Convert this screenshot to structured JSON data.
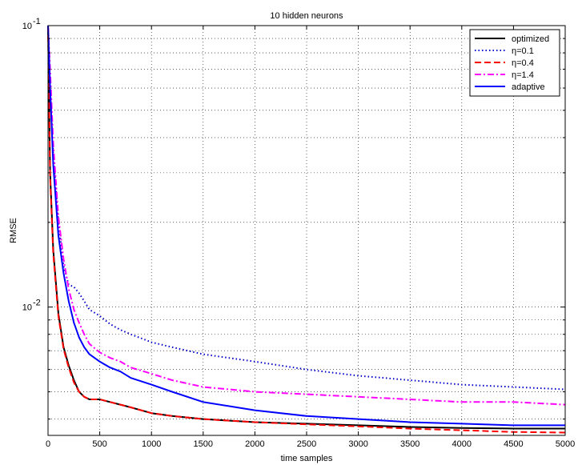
{
  "chart_data": {
    "type": "line",
    "title": "10 hidden neurons",
    "xlabel": "time samples",
    "ylabel": "RMSE",
    "xlim": [
      0,
      5000
    ],
    "ylim": [
      0.0035,
      0.1
    ],
    "yscale": "log",
    "grid": true,
    "legend_position": "top-right",
    "x_ticks": [
      0,
      500,
      1000,
      1500,
      2000,
      2500,
      3000,
      3500,
      4000,
      4500,
      5000
    ],
    "x_tick_labels": [
      "0",
      "500",
      "1000",
      "1500",
      "2000",
      "2500",
      "3000",
      "3500",
      "4000",
      "4500",
      "5000"
    ],
    "y_major_ticks": [
      0.01,
      0.1
    ],
    "y_major_tick_labels": [
      {
        "base": "10",
        "exp": "-2"
      },
      {
        "base": "10",
        "exp": "-1"
      }
    ],
    "y_minor_ticks": [
      0.004,
      0.005,
      0.006,
      0.007,
      0.008,
      0.009,
      0.02,
      0.03,
      0.04,
      0.05,
      0.06,
      0.07,
      0.08,
      0.09
    ],
    "series": [
      {
        "name": "optimized",
        "color": "#000000",
        "dash": "solid",
        "x": [
          0,
          20,
          50,
          100,
          150,
          200,
          250,
          300,
          350,
          400,
          450,
          500,
          600,
          700,
          800,
          1000,
          1200,
          1500,
          2000,
          2500,
          3000,
          3500,
          4000,
          4500,
          5000
        ],
        "y": [
          0.1,
          0.03,
          0.016,
          0.0095,
          0.0072,
          0.0062,
          0.0055,
          0.005,
          0.0048,
          0.0047,
          0.0047,
          0.0047,
          0.0046,
          0.0045,
          0.0044,
          0.0042,
          0.0041,
          0.004,
          0.0039,
          0.00385,
          0.0038,
          0.00375,
          0.00372,
          0.0037,
          0.0037
        ]
      },
      {
        "name": "η=0.1",
        "color": "#0000cc",
        "dash": "dotted",
        "x": [
          0,
          20,
          50,
          100,
          150,
          200,
          250,
          300,
          350,
          400,
          500,
          600,
          700,
          800,
          1000,
          1200,
          1500,
          2000,
          2500,
          3000,
          3500,
          4000,
          4500,
          5000
        ],
        "y": [
          0.1,
          0.06,
          0.035,
          0.02,
          0.014,
          0.012,
          0.0118,
          0.0112,
          0.0105,
          0.0098,
          0.0093,
          0.0087,
          0.0083,
          0.008,
          0.0075,
          0.0072,
          0.0068,
          0.0064,
          0.006,
          0.0057,
          0.0055,
          0.0053,
          0.0052,
          0.0051
        ]
      },
      {
        "name": "η=0.4",
        "color": "#ff0000",
        "dash": "dashed",
        "x": [
          0,
          20,
          50,
          100,
          150,
          200,
          250,
          300,
          350,
          400,
          450,
          500,
          600,
          700,
          800,
          1000,
          1200,
          1500,
          2000,
          2500,
          3000,
          3500,
          4000,
          4500,
          5000
        ],
        "y": [
          0.1,
          0.029,
          0.0155,
          0.0093,
          0.0071,
          0.0061,
          0.0054,
          0.005,
          0.0048,
          0.0047,
          0.0047,
          0.0047,
          0.0046,
          0.0045,
          0.0044,
          0.0042,
          0.0041,
          0.004,
          0.0039,
          0.00383,
          0.00377,
          0.0037,
          0.00365,
          0.0036,
          0.00358
        ]
      },
      {
        "name": "η=1.4",
        "color": "#ff00ff",
        "dash": "dashdot",
        "x": [
          0,
          20,
          50,
          100,
          150,
          200,
          250,
          300,
          350,
          400,
          500,
          600,
          700,
          800,
          1000,
          1200,
          1500,
          2000,
          2500,
          3000,
          3500,
          4000,
          4500,
          5000
        ],
        "y": [
          0.1,
          0.07,
          0.038,
          0.021,
          0.0148,
          0.0116,
          0.0098,
          0.0088,
          0.008,
          0.0074,
          0.0069,
          0.0066,
          0.0064,
          0.0061,
          0.0058,
          0.0055,
          0.0052,
          0.005,
          0.0049,
          0.0048,
          0.0047,
          0.0046,
          0.0046,
          0.0045
        ]
      },
      {
        "name": "adaptive",
        "color": "#0000ff",
        "dash": "solid",
        "x": [
          0,
          20,
          50,
          100,
          150,
          200,
          250,
          300,
          350,
          400,
          500,
          600,
          700,
          800,
          1000,
          1200,
          1500,
          2000,
          2500,
          3000,
          3500,
          4000,
          4500,
          5000
        ],
        "y": [
          0.1,
          0.06,
          0.032,
          0.018,
          0.0132,
          0.0105,
          0.0088,
          0.0078,
          0.0072,
          0.0068,
          0.0064,
          0.0061,
          0.0059,
          0.0056,
          0.0053,
          0.005,
          0.0046,
          0.0043,
          0.0041,
          0.004,
          0.0039,
          0.00385,
          0.0038,
          0.0038
        ]
      }
    ]
  }
}
